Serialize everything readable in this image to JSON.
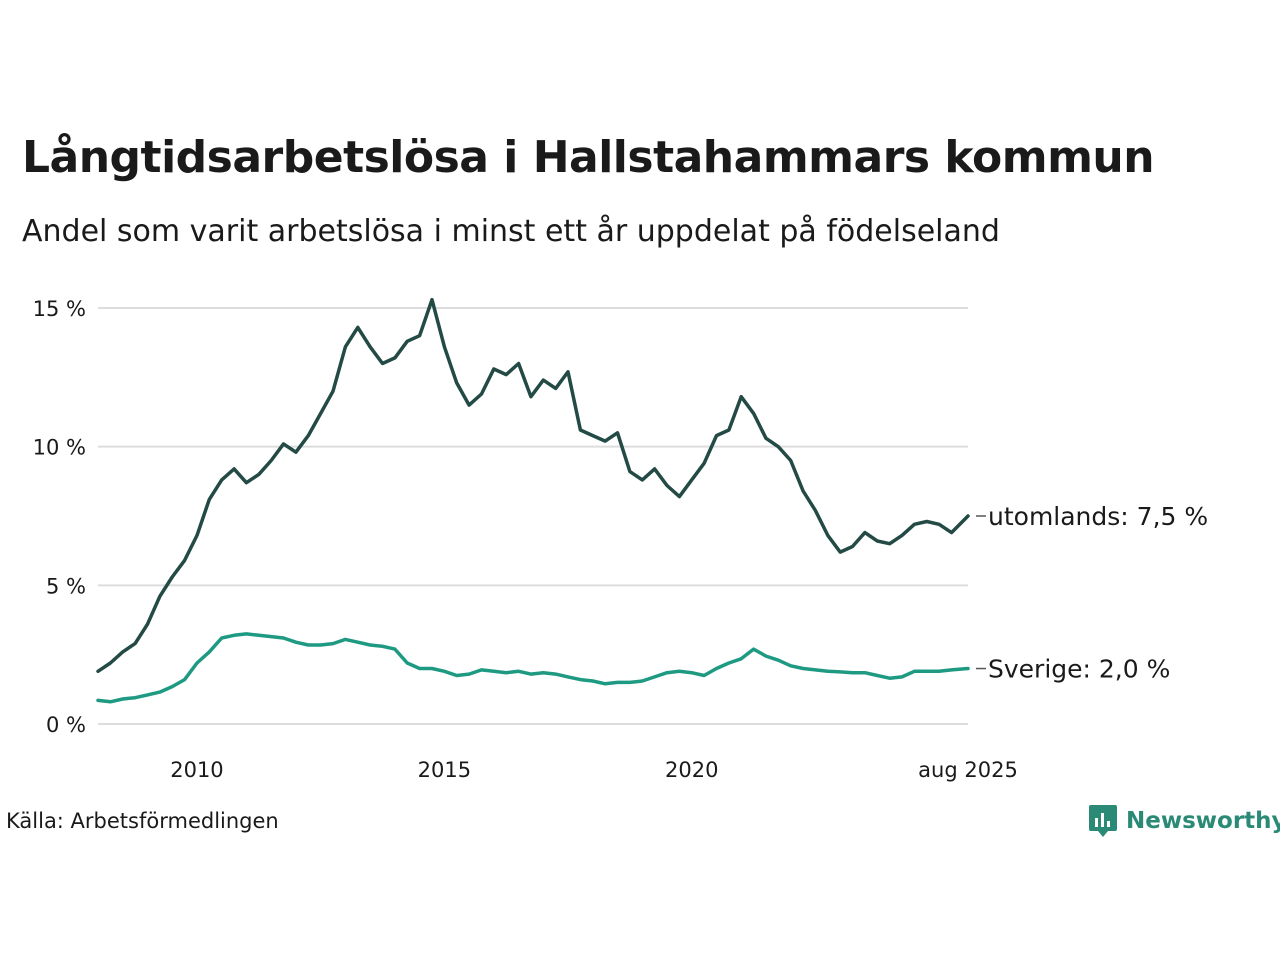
{
  "title": "Långtidsarbetslösa i Hallstahammars kommun",
  "subtitle": "Andel som varit arbetslösa i minst ett år uppdelat på födelseland",
  "source": "Källa: Arbetsförmedlingen",
  "brand": "Newsworthy",
  "colors": {
    "utomlands": "#234a44",
    "sverige": "#1f9a82",
    "grid": "#dddddd",
    "brand": "#2b8a76"
  },
  "chart_data": {
    "type": "line",
    "ylim": [
      0,
      15
    ],
    "xlim": [
      "2008-01",
      "2025-08"
    ],
    "y_ticks": [
      {
        "value": 0,
        "label": "0 %"
      },
      {
        "value": 5,
        "label": "5 %"
      },
      {
        "value": 10,
        "label": "10 %"
      },
      {
        "value": 15,
        "label": "15 %"
      }
    ],
    "x_ticks": [
      {
        "value": "2010-01",
        "label": "2010"
      },
      {
        "value": "2015-01",
        "label": "2015"
      },
      {
        "value": "2020-01",
        "label": "2020"
      },
      {
        "value": "2025-08",
        "label": "aug 2025"
      }
    ],
    "grid": true,
    "series": [
      {
        "key": "utomlands",
        "end_label": "utomlands: 7,5 %",
        "points": [
          [
            "2008-01",
            1.9
          ],
          [
            "2008-04",
            2.2
          ],
          [
            "2008-07",
            2.6
          ],
          [
            "2008-10",
            2.9
          ],
          [
            "2009-01",
            3.6
          ],
          [
            "2009-04",
            4.6
          ],
          [
            "2009-07",
            5.3
          ],
          [
            "2009-10",
            5.9
          ],
          [
            "2010-01",
            6.8
          ],
          [
            "2010-04",
            8.1
          ],
          [
            "2010-07",
            8.8
          ],
          [
            "2010-10",
            9.2
          ],
          [
            "2011-01",
            8.7
          ],
          [
            "2011-04",
            9.0
          ],
          [
            "2011-07",
            9.5
          ],
          [
            "2011-10",
            10.1
          ],
          [
            "2012-01",
            9.8
          ],
          [
            "2012-04",
            10.4
          ],
          [
            "2012-07",
            11.2
          ],
          [
            "2012-10",
            12.0
          ],
          [
            "2013-01",
            13.6
          ],
          [
            "2013-04",
            14.3
          ],
          [
            "2013-07",
            13.6
          ],
          [
            "2013-10",
            13.0
          ],
          [
            "2014-01",
            13.2
          ],
          [
            "2014-04",
            13.8
          ],
          [
            "2014-07",
            14.0
          ],
          [
            "2014-10",
            15.3
          ],
          [
            "2015-01",
            13.6
          ],
          [
            "2015-04",
            12.3
          ],
          [
            "2015-07",
            11.5
          ],
          [
            "2015-10",
            11.9
          ],
          [
            "2016-01",
            12.8
          ],
          [
            "2016-04",
            12.6
          ],
          [
            "2016-07",
            13.0
          ],
          [
            "2016-10",
            11.8
          ],
          [
            "2017-01",
            12.4
          ],
          [
            "2017-04",
            12.1
          ],
          [
            "2017-07",
            12.7
          ],
          [
            "2017-10",
            10.6
          ],
          [
            "2018-01",
            10.4
          ],
          [
            "2018-04",
            10.2
          ],
          [
            "2018-07",
            10.5
          ],
          [
            "2018-10",
            9.1
          ],
          [
            "2019-01",
            8.8
          ],
          [
            "2019-04",
            9.2
          ],
          [
            "2019-07",
            8.6
          ],
          [
            "2019-10",
            8.2
          ],
          [
            "2020-01",
            8.8
          ],
          [
            "2020-04",
            9.4
          ],
          [
            "2020-07",
            10.4
          ],
          [
            "2020-10",
            10.6
          ],
          [
            "2021-01",
            11.8
          ],
          [
            "2021-04",
            11.2
          ],
          [
            "2021-07",
            10.3
          ],
          [
            "2021-10",
            10.0
          ],
          [
            "2022-01",
            9.5
          ],
          [
            "2022-04",
            8.4
          ],
          [
            "2022-07",
            7.7
          ],
          [
            "2022-10",
            6.8
          ],
          [
            "2023-01",
            6.2
          ],
          [
            "2023-04",
            6.4
          ],
          [
            "2023-07",
            6.9
          ],
          [
            "2023-10",
            6.6
          ],
          [
            "2024-01",
            6.5
          ],
          [
            "2024-04",
            6.8
          ],
          [
            "2024-07",
            7.2
          ],
          [
            "2024-10",
            7.3
          ],
          [
            "2025-01",
            7.2
          ],
          [
            "2025-04",
            6.9
          ],
          [
            "2025-08",
            7.5
          ]
        ]
      },
      {
        "key": "sverige",
        "end_label": "Sverige: 2,0 %",
        "points": [
          [
            "2008-01",
            0.85
          ],
          [
            "2008-04",
            0.8
          ],
          [
            "2008-07",
            0.9
          ],
          [
            "2008-10",
            0.95
          ],
          [
            "2009-01",
            1.05
          ],
          [
            "2009-04",
            1.15
          ],
          [
            "2009-07",
            1.35
          ],
          [
            "2009-10",
            1.6
          ],
          [
            "2010-01",
            2.2
          ],
          [
            "2010-04",
            2.6
          ],
          [
            "2010-07",
            3.1
          ],
          [
            "2010-10",
            3.2
          ],
          [
            "2011-01",
            3.25
          ],
          [
            "2011-04",
            3.2
          ],
          [
            "2011-07",
            3.15
          ],
          [
            "2011-10",
            3.1
          ],
          [
            "2012-01",
            2.95
          ],
          [
            "2012-04",
            2.85
          ],
          [
            "2012-07",
            2.85
          ],
          [
            "2012-10",
            2.9
          ],
          [
            "2013-01",
            3.05
          ],
          [
            "2013-04",
            2.95
          ],
          [
            "2013-07",
            2.85
          ],
          [
            "2013-10",
            2.8
          ],
          [
            "2014-01",
            2.7
          ],
          [
            "2014-04",
            2.2
          ],
          [
            "2014-07",
            2.0
          ],
          [
            "2014-10",
            2.0
          ],
          [
            "2015-01",
            1.9
          ],
          [
            "2015-04",
            1.75
          ],
          [
            "2015-07",
            1.8
          ],
          [
            "2015-10",
            1.95
          ],
          [
            "2016-01",
            1.9
          ],
          [
            "2016-04",
            1.85
          ],
          [
            "2016-07",
            1.9
          ],
          [
            "2016-10",
            1.8
          ],
          [
            "2017-01",
            1.85
          ],
          [
            "2017-04",
            1.8
          ],
          [
            "2017-07",
            1.7
          ],
          [
            "2017-10",
            1.6
          ],
          [
            "2018-01",
            1.55
          ],
          [
            "2018-04",
            1.45
          ],
          [
            "2018-07",
            1.5
          ],
          [
            "2018-10",
            1.5
          ],
          [
            "2019-01",
            1.55
          ],
          [
            "2019-04",
            1.7
          ],
          [
            "2019-07",
            1.85
          ],
          [
            "2019-10",
            1.9
          ],
          [
            "2020-01",
            1.85
          ],
          [
            "2020-04",
            1.75
          ],
          [
            "2020-07",
            2.0
          ],
          [
            "2020-10",
            2.2
          ],
          [
            "2021-01",
            2.35
          ],
          [
            "2021-04",
            2.7
          ],
          [
            "2021-07",
            2.45
          ],
          [
            "2021-10",
            2.3
          ],
          [
            "2022-01",
            2.1
          ],
          [
            "2022-04",
            2.0
          ],
          [
            "2022-07",
            1.95
          ],
          [
            "2022-10",
            1.9
          ],
          [
            "2023-01",
            1.88
          ],
          [
            "2023-04",
            1.85
          ],
          [
            "2023-07",
            1.85
          ],
          [
            "2023-10",
            1.75
          ],
          [
            "2024-01",
            1.65
          ],
          [
            "2024-04",
            1.7
          ],
          [
            "2024-07",
            1.9
          ],
          [
            "2024-10",
            1.9
          ],
          [
            "2025-01",
            1.9
          ],
          [
            "2025-04",
            1.95
          ],
          [
            "2025-08",
            2.0
          ]
        ]
      }
    ]
  }
}
